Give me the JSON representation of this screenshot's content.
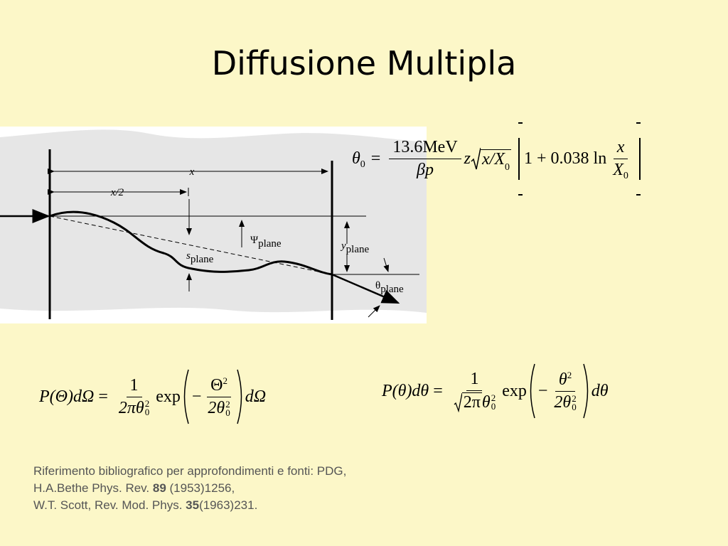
{
  "title": "Diffusione Multipla",
  "figure": {
    "x": "x",
    "half_x": "x/2",
    "psi": "Ψ",
    "psi_sub": "plane",
    "s": "s",
    "s_sub": "plane",
    "y": "y",
    "y_sub": "plane",
    "theta": "θ",
    "theta_sub": "plane"
  },
  "formula_1": {
    "lhs": "θ",
    "lhs_sub": "0",
    "equals": "=",
    "num": "13.6MeV",
    "den": "βp",
    "z": "z",
    "root": "x/X",
    "root_sub": "0",
    "bracket_text": "1 + 0.038 ln",
    "frac_num": "x",
    "frac_den": "X",
    "frac_den_sub": "0"
  },
  "formula_2": {
    "lhs": "P(Θ)dΩ",
    "equals": "=",
    "num": "1",
    "den": "2πθ",
    "den_sup": "2",
    "den_sub": "0",
    "exp": "exp",
    "minus": "−",
    "inner_num": "Θ",
    "inner_num_sup": "2",
    "inner_den": "2θ",
    "inner_den_sup": "2",
    "inner_den_sub": "0",
    "rhs": "dΩ"
  },
  "formula_3": {
    "lhs": "P(θ)dθ",
    "equals": "=",
    "num": "1",
    "den_root": "2π",
    "den": "θ",
    "den_sup": "2",
    "den_sub": "0",
    "exp": "exp",
    "minus": "−",
    "inner_num": "θ",
    "inner_num_sup": "2",
    "inner_den": "2θ",
    "inner_den_sup": "2",
    "inner_den_sub": "0",
    "rhs": "dθ"
  },
  "references": {
    "line_1": "Riferimento bibliografico per approfondimenti e fonti: PDG,",
    "line_2": [
      "H.A.Bethe Phys. Rev. ",
      "89",
      " (1953)1256,"
    ],
    "line_3": [
      "W.T. Scott, Rev. Mod. Phys. ",
      "35",
      "(1963)231."
    ]
  }
}
